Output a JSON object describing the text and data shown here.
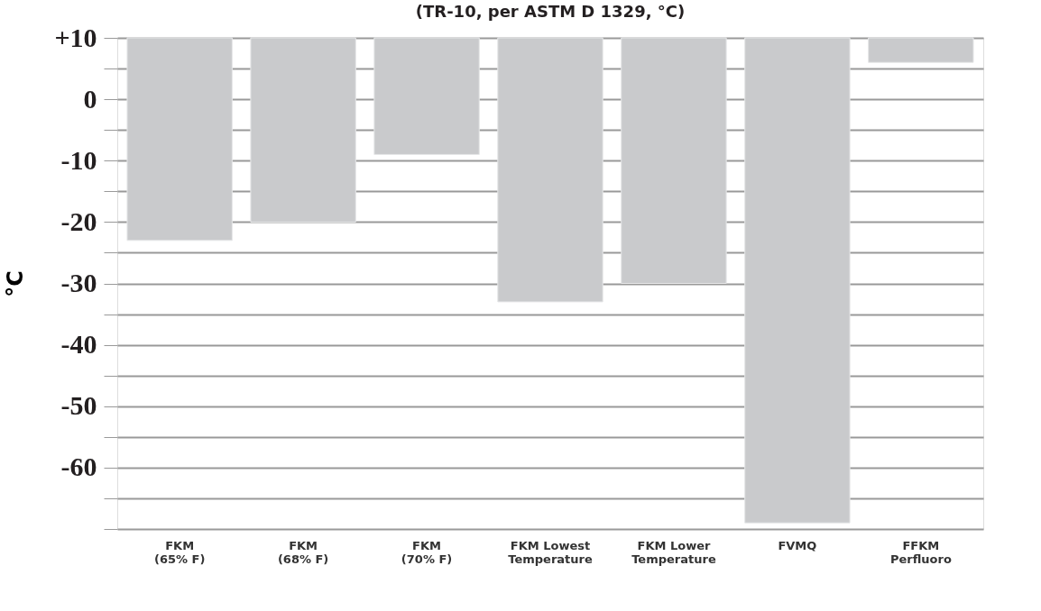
{
  "chart_data": {
    "type": "bar",
    "title": "(TR-10, per ASTM D 1329, °C)",
    "ylabel": "°C",
    "categories": [
      "FKM\n(65% F)",
      "FKM\n(68% F)",
      "FKM\n(70% F)",
      "FKM Lowest\nTemperature",
      "FKM Lower\nTemperature",
      "FVMQ",
      "FFKM\nPerfluoro"
    ],
    "base": [
      10,
      10,
      10,
      10,
      10,
      10,
      10
    ],
    "values": [
      -33,
      -30,
      -19,
      -43,
      -40,
      -79,
      -4
    ],
    "color": "#c9cacc",
    "ylim": [
      -70,
      10
    ],
    "yticks": [
      {
        "value": 10,
        "label": "+10"
      },
      {
        "value": 5,
        "label": null
      },
      0,
      {
        "value": -5,
        "label": null
      },
      -10,
      {
        "value": -15,
        "label": null
      },
      -20,
      {
        "value": -25,
        "label": null
      },
      -30,
      {
        "value": -35,
        "label": null
      },
      -40,
      {
        "value": -45,
        "label": null
      },
      -50,
      {
        "value": -55,
        "label": null
      },
      -60,
      {
        "value": -65,
        "label": null
      },
      {
        "value": -70,
        "label": null
      }
    ],
    "grid": "y"
  }
}
